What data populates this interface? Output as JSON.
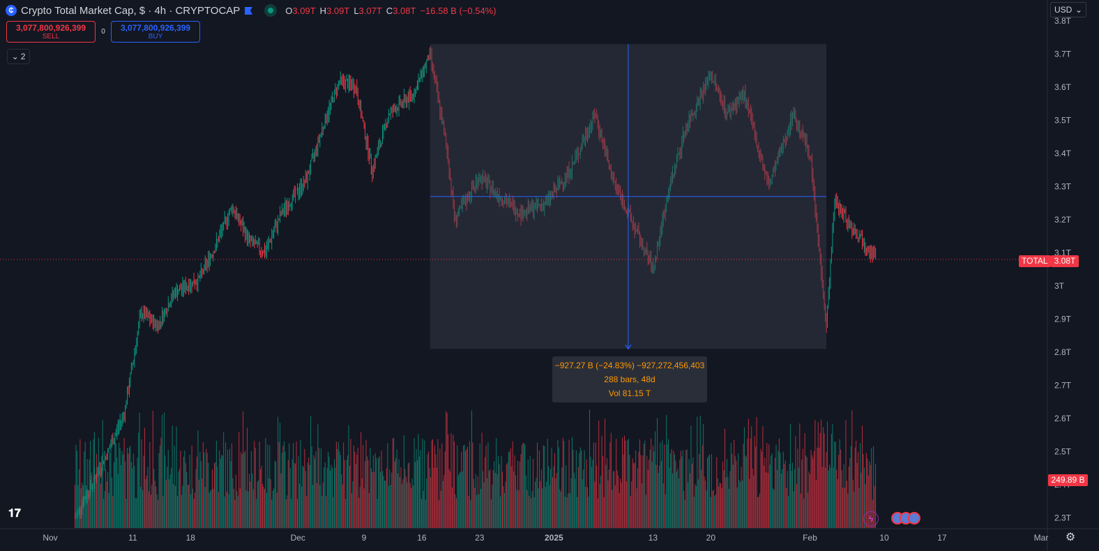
{
  "header": {
    "title": "Crypto Total Market Cap, $ · 4h · CRYPTOCAP",
    "symbol_icon": "cryptocap-icon",
    "ohlc": {
      "o_label": "O",
      "o": "3.09T",
      "h_label": "H",
      "h": "3.09T",
      "l_label": "L",
      "l": "3.07T",
      "c_label": "C",
      "c": "3.08T",
      "change": "−16.58 B (−0.54%)"
    }
  },
  "trade": {
    "sell_price": "3,077,800,926,399",
    "sell_label": "SELL",
    "spread": "0",
    "buy_price": "3,077,800,926,399",
    "buy_label": "BUY"
  },
  "indicators_collapse": {
    "count": "2"
  },
  "currency_select": {
    "value": "USD"
  },
  "measure": {
    "line1": "−927.27 B (−24.83%) −927,272,456,403",
    "line2": "288 bars, 48d",
    "line3": "Vol 81.15 T"
  },
  "price_tag": {
    "symbol": "TOTAL",
    "value": "3.08T"
  },
  "volume_tag": {
    "value": "249.89 B"
  },
  "colors": {
    "up": "#089981",
    "down": "#f23645",
    "background": "#131722",
    "measure": "#2962ff"
  },
  "chart_data": {
    "type": "candlestick",
    "title": "Crypto Total Market Cap, $ · 4h · CRYPTOCAP",
    "y_unit": "USD (T)",
    "y_ticks": [
      "3.8T",
      "3.7T",
      "3.6T",
      "3.5T",
      "3.4T",
      "3.3T",
      "3.2T",
      "3.1T",
      "3T",
      "2.9T",
      "2.8T",
      "2.7T",
      "2.6T",
      "2.5T",
      "2.4T",
      "2.3T"
    ],
    "y_tick_values": [
      3.8,
      3.7,
      3.6,
      3.5,
      3.4,
      3.3,
      3.2,
      3.1,
      3.0,
      2.9,
      2.8,
      2.7,
      2.6,
      2.5,
      2.4,
      2.3
    ],
    "ylim": [
      2.3,
      3.8
    ],
    "x_ticks": [
      "Nov",
      "11",
      "18",
      "Dec",
      "9",
      "16",
      "23",
      "2025",
      "13",
      "20",
      "Feb",
      "10",
      "17",
      "Mar"
    ],
    "x_tick_dates": [
      "2024-11-01",
      "2024-11-11",
      "2024-11-18",
      "2024-12-01",
      "2024-12-09",
      "2024-12-16",
      "2024-12-23",
      "2025-01-01",
      "2025-01-13",
      "2025-01-20",
      "2025-02-01",
      "2025-02-10",
      "2025-02-17",
      "2025-03-01"
    ],
    "price_path": [
      [
        "2024-11-04",
        2.3
      ],
      [
        "2024-11-06",
        2.4
      ],
      [
        "2024-11-08",
        2.5
      ],
      [
        "2024-11-10",
        2.62
      ],
      [
        "2024-11-12",
        2.92
      ],
      [
        "2024-11-14",
        2.88
      ],
      [
        "2024-11-16",
        2.98
      ],
      [
        "2024-11-19",
        3.02
      ],
      [
        "2024-11-21",
        3.12
      ],
      [
        "2024-11-23",
        3.24
      ],
      [
        "2024-11-25",
        3.14
      ],
      [
        "2024-11-27",
        3.1
      ],
      [
        "2024-11-29",
        3.22
      ],
      [
        "2024-12-02",
        3.32
      ],
      [
        "2024-12-04",
        3.48
      ],
      [
        "2024-12-06",
        3.62
      ],
      [
        "2024-12-08",
        3.6
      ],
      [
        "2024-12-10",
        3.35
      ],
      [
        "2024-12-12",
        3.52
      ],
      [
        "2024-12-15",
        3.58
      ],
      [
        "2024-12-17",
        3.7
      ],
      [
        "2024-12-19",
        3.42
      ],
      [
        "2024-12-20",
        3.2
      ],
      [
        "2024-12-23",
        3.33
      ],
      [
        "2024-12-25",
        3.28
      ],
      [
        "2024-12-28",
        3.22
      ],
      [
        "2024-12-31",
        3.25
      ],
      [
        "2025-01-03",
        3.35
      ],
      [
        "2025-01-06",
        3.52
      ],
      [
        "2025-01-08",
        3.33
      ],
      [
        "2025-01-10",
        3.22
      ],
      [
        "2025-01-13",
        3.05
      ],
      [
        "2025-01-15",
        3.3
      ],
      [
        "2025-01-17",
        3.48
      ],
      [
        "2025-01-20",
        3.64
      ],
      [
        "2025-01-22",
        3.52
      ],
      [
        "2025-01-24",
        3.58
      ],
      [
        "2025-01-27",
        3.3
      ],
      [
        "2025-01-30",
        3.52
      ],
      [
        "2025-02-01",
        3.4
      ],
      [
        "2025-02-03",
        2.88
      ],
      [
        "2025-02-04",
        3.26
      ],
      [
        "2025-02-06",
        3.18
      ],
      [
        "2025-02-08",
        3.12
      ],
      [
        "2025-02-09",
        3.08
      ]
    ],
    "last_price": 3.08,
    "measure": {
      "start": "2024-12-17",
      "end": "2025-02-03",
      "high": 3.73,
      "low": 2.81,
      "change": "−927.27 B (−24.83%)",
      "bars": 288,
      "duration": "48d",
      "volume": "81.15 T"
    },
    "last_volume": "249.89 B"
  }
}
